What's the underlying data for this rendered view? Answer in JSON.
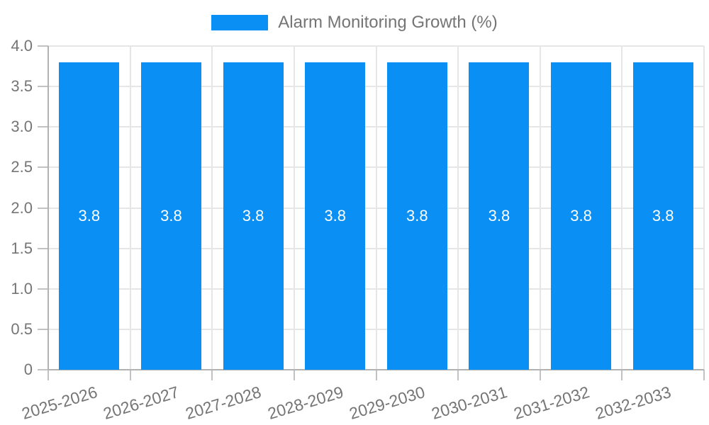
{
  "legend": {
    "label": "Alarm Monitoring Growth (%)"
  },
  "chart_data": {
    "type": "bar",
    "title": "",
    "xlabel": "",
    "ylabel": "",
    "legend_position": "top-center",
    "grid": true,
    "series_name": "Alarm Monitoring Growth (%)",
    "categories": [
      "2025-2026",
      "2026-2027",
      "2027-2028",
      "2028-2029",
      "2029-2030",
      "2030-2031",
      "2031-2032",
      "2032-2033"
    ],
    "values": [
      3.8,
      3.8,
      3.8,
      3.8,
      3.8,
      3.8,
      3.8,
      3.8
    ],
    "bar_value_labels": [
      "3.8",
      "3.8",
      "3.8",
      "3.8",
      "3.8",
      "3.8",
      "3.8",
      "3.8"
    ],
    "ylim": [
      0,
      4
    ],
    "ytick_values": [
      0,
      0.5,
      1.0,
      1.5,
      2.0,
      2.5,
      3.0,
      3.5,
      4.0
    ],
    "ytick_labels": [
      "0",
      "0.5",
      "1.0",
      "1.5",
      "2.0",
      "2.5",
      "3.0",
      "3.5",
      "4.0"
    ]
  },
  "colors": {
    "bar": "#0a8ff4",
    "bar_label_text": "#ffffff",
    "grid": "#e6e6e6",
    "axis": "#b2b2b2",
    "tick": "#c2c2c2",
    "tick_text": "#757575",
    "legend_text": "#757575",
    "background": "#ffffff"
  }
}
